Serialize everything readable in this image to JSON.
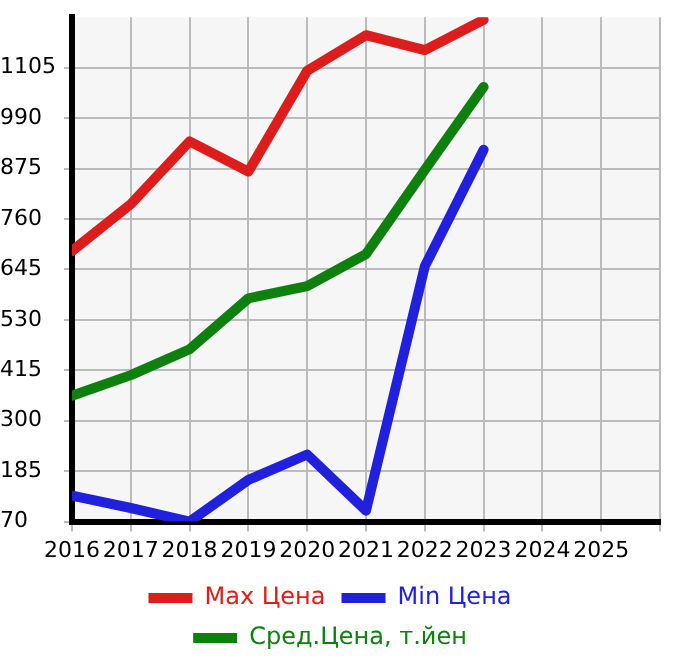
{
  "chart_data": {
    "type": "line",
    "x": [
      2016,
      2017,
      2018,
      2019,
      2020,
      2021,
      2022,
      2023
    ],
    "series": [
      {
        "name": "Max Цена",
        "color": "#dd1c1c",
        "values": [
          687,
          794,
          937,
          868,
          1098,
          1179,
          1145,
          1214
        ]
      },
      {
        "name": "Min Цена",
        "color": "#2020dd",
        "values": [
          129,
          101,
          70,
          165,
          223,
          95,
          652,
          918
        ]
      },
      {
        "name": "Сред.Цена, т.йен",
        "color": "#0e800e",
        "values": [
          357,
          404,
          463,
          579,
          607,
          680,
          872,
          1061
        ]
      }
    ],
    "xlim": [
      2016,
      2026
    ],
    "xticks": [
      2016,
      2017,
      2018,
      2019,
      2020,
      2021,
      2022,
      2023,
      2024,
      2025,
      {
        "value": 2026,
        "label": null
      }
    ],
    "ylim": [
      70,
      1220
    ],
    "yticks": [
      70,
      185,
      300,
      415,
      530,
      645,
      760,
      875,
      990,
      1105
    ],
    "grid": true,
    "legend": "bottom",
    "marker": "none",
    "line_style": "solid"
  }
}
